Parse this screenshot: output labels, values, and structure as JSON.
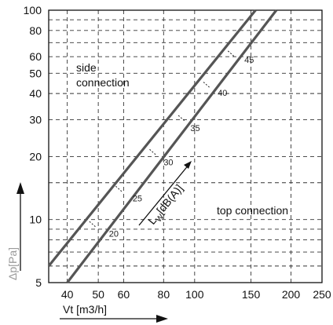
{
  "chart_data": {
    "type": "line",
    "title": "",
    "xlabel": "Vt [m3/h]",
    "ylabel": "Δp[Pa]",
    "x_scale": "log",
    "y_scale": "log",
    "xlim": [
      35,
      250
    ],
    "ylim": [
      5,
      100
    ],
    "x_ticks": [
      40,
      50,
      60,
      80,
      100,
      150,
      200,
      250
    ],
    "y_ticks": [
      5,
      10,
      20,
      30,
      40,
      50,
      60,
      80,
      100
    ],
    "grid": true,
    "grid_style": "dashed",
    "series": [
      {
        "name": "side connection",
        "x": [
          35,
          155
        ],
        "y": [
          6,
          100
        ]
      },
      {
        "name": "top connection",
        "x": [
          40,
          180
        ],
        "y": [
          5,
          100
        ]
      }
    ],
    "noise_labels": [
      {
        "text": "20",
        "x": 54,
        "y": 8.3
      },
      {
        "text": "25",
        "x": 64,
        "y": 12.2
      },
      {
        "text": "30",
        "x": 80,
        "y": 18.2
      },
      {
        "text": "35",
        "x": 97,
        "y": 26.5
      },
      {
        "text": "40",
        "x": 118,
        "y": 39
      },
      {
        "text": "45",
        "x": 143,
        "y": 56
      }
    ],
    "noise_ticks": [
      {
        "x": 48,
        "y": 9.5
      },
      {
        "x": 58,
        "y": 14
      },
      {
        "x": 74,
        "y": 21
      },
      {
        "x": 91,
        "y": 30.5
      },
      {
        "x": 109,
        "y": 44
      },
      {
        "x": 130,
        "y": 62
      }
    ],
    "annotations": {
      "side_connection_line1": "side",
      "side_connection_line2": "connection",
      "top_connection": "top connection",
      "lw_label": "L",
      "lw_sub": "W",
      "lw_unit": "[dB(A)]"
    },
    "colors": {
      "curve": "#555555",
      "grid": "#333333",
      "axis_label_y": "#9a9a9a",
      "axis_label_x": "#111111"
    }
  }
}
